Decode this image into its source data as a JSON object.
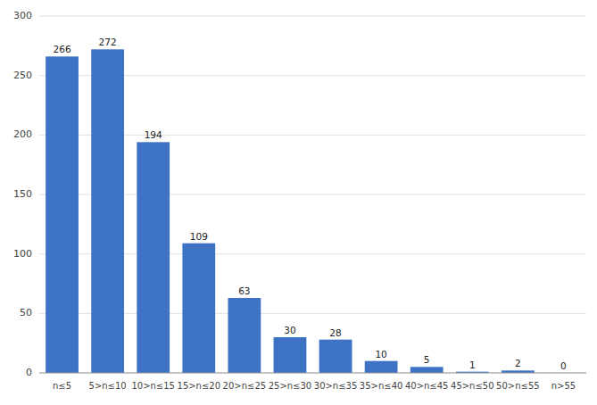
{
  "chart_data": {
    "type": "bar",
    "categories": [
      "n≤5",
      "5>n≤10",
      "10>n≤15",
      "15>n≤20",
      "20>n≤25",
      "25>n≤30",
      "30>n≤35",
      "35>n≤40",
      "40>n≤45",
      "45>n≤50",
      "50>n≤55",
      "n>55"
    ],
    "values": [
      266,
      272,
      194,
      109,
      63,
      30,
      28,
      10,
      5,
      1,
      2,
      0
    ],
    "color": "#3d72c5",
    "ylim": [
      0,
      300
    ],
    "yticks": [
      0,
      50,
      100,
      150,
      200,
      250,
      300
    ],
    "grid": true,
    "data_labels": true
  }
}
